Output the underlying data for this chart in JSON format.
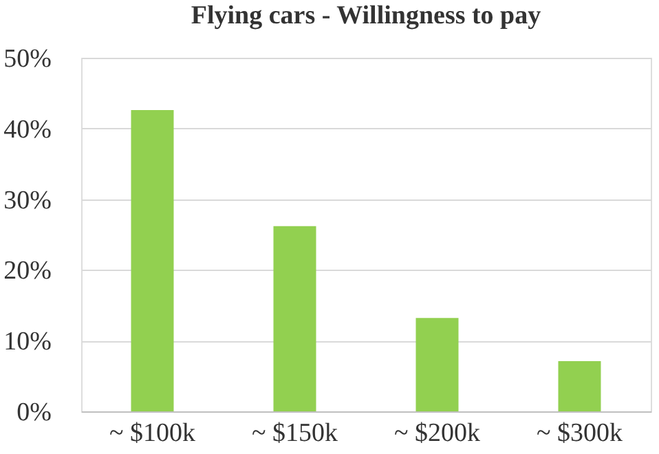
{
  "chart_data": {
    "type": "bar",
    "title": "Flying cars - Willingness to pay",
    "categories": [
      "~ $100k",
      "~ $150k",
      "~ $200k",
      "~ $300k"
    ],
    "values": [
      42.6,
      26.2,
      13.2,
      7.1
    ],
    "color": "#92d050",
    "ylim": [
      0,
      50
    ],
    "yticks": [
      {
        "value": 0,
        "label": "0%"
      },
      {
        "value": 10,
        "label": "10%"
      },
      {
        "value": 20,
        "label": "20%"
      },
      {
        "value": 30,
        "label": "30%"
      },
      {
        "value": 40,
        "label": "40%"
      },
      {
        "value": 50,
        "label": "50%"
      }
    ],
    "grid": "y"
  }
}
